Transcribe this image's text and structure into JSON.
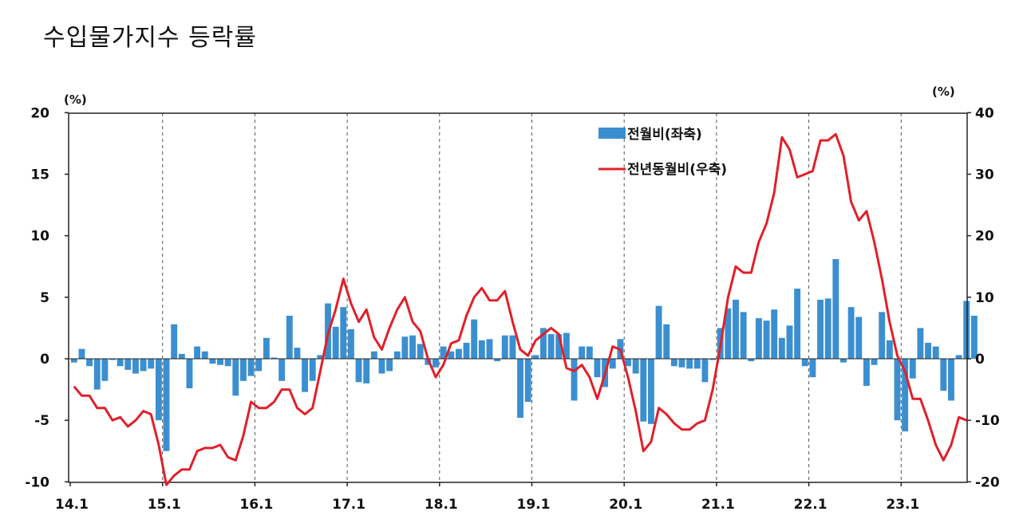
{
  "title": "수입물가지수 등락률",
  "chart_data": {
    "type": "bar+line",
    "title": "수입물가지수 등락률",
    "x_tick_labels": [
      "14.1",
      "15.1",
      "16.1",
      "17.1",
      "18.1",
      "19.1",
      "20.1",
      "21.1",
      "22.1",
      "23.1"
    ],
    "left_axis": {
      "unit": "(%)",
      "ylim": [
        -10,
        20
      ],
      "ticks": [
        "20",
        "15",
        "10",
        "5",
        "0",
        "-5",
        "-10"
      ]
    },
    "right_axis": {
      "unit": "(%)",
      "ylim": [
        -20,
        40
      ],
      "ticks": [
        "40",
        "30",
        "20",
        "10",
        "0",
        "-10",
        "-20"
      ]
    },
    "grid": "vertical dashed lines at year starts",
    "legend_position": "top-center",
    "series": [
      {
        "name": "전월비(좌축)",
        "type": "bar",
        "axis": "left",
        "color": "#3b8fd0",
        "start": "2014.01",
        "values": [
          -0.3,
          0.8,
          -0.6,
          -2.5,
          -1.8,
          -0.1,
          -0.6,
          -0.9,
          -1.2,
          -1.0,
          -0.8,
          -5.0,
          -7.5,
          2.8,
          0.4,
          -2.4,
          1.0,
          0.6,
          -0.4,
          -0.5,
          -0.6,
          -3.0,
          -1.8,
          -1.4,
          -1.0,
          1.7,
          0.1,
          -1.8,
          3.5,
          0.9,
          -2.7,
          -1.8,
          0.3,
          4.5,
          2.6,
          4.2,
          2.4,
          -1.9,
          -2.0,
          0.6,
          -1.2,
          -1.0,
          0.6,
          1.8,
          1.9,
          1.2,
          -0.5,
          -0.7,
          1.0,
          0.6,
          0.8,
          1.3,
          3.2,
          1.5,
          1.6,
          -0.2,
          1.9,
          1.9,
          -4.8,
          -3.5,
          0.3,
          2.5,
          2.0,
          2.0,
          2.1,
          -3.4,
          1.0,
          1.0,
          -1.5,
          -2.3,
          -0.8,
          1.6,
          -0.6,
          -1.2,
          -5.1,
          -5.3,
          4.3,
          2.8,
          -0.6,
          -0.7,
          -0.8,
          -0.8,
          -1.9,
          -0.1,
          2.5,
          4.1,
          4.8,
          3.8,
          -0.2,
          3.3,
          3.1,
          4.0,
          1.7,
          2.7,
          5.7,
          -0.6,
          -1.5,
          4.8,
          4.9,
          8.1,
          -0.3,
          4.2,
          3.4,
          -2.2,
          -0.5,
          3.8,
          1.5,
          -5.0,
          -5.9,
          -1.6,
          2.5,
          1.3,
          1.0,
          -2.6,
          -3.4,
          0.3,
          4.7,
          3.5
        ]
      },
      {
        "name": "전년동월비(우축)",
        "type": "line",
        "axis": "right",
        "color": "#e0202a",
        "start": "2014.01",
        "values": [
          -4.5,
          -6.0,
          -6.0,
          -8.0,
          -8.0,
          -10.0,
          -9.5,
          -11.0,
          -10.0,
          -8.5,
          -9.0,
          -14.0,
          -20.5,
          -19.0,
          -18.0,
          -18.0,
          -15.0,
          -14.5,
          -14.5,
          -14.0,
          -16.0,
          -16.5,
          -12.5,
          -7.0,
          -8.0,
          -8.0,
          -7.0,
          -5.0,
          -5.0,
          -8.0,
          -9.0,
          -8.0,
          -2.0,
          4.0,
          8.0,
          13.0,
          9.0,
          6.0,
          8.0,
          3.5,
          1.5,
          5.0,
          8.0,
          10.0,
          6.0,
          4.5,
          0.0,
          -3.0,
          -1.0,
          2.5,
          3.0,
          7.0,
          10.0,
          11.5,
          9.5,
          9.5,
          11.0,
          6.0,
          1.5,
          0.5,
          3.0,
          4.0,
          5.0,
          4.0,
          -1.5,
          -2.0,
          -1.0,
          -3.0,
          -6.5,
          -2.5,
          2.0,
          1.5,
          -3.0,
          -8.5,
          -15.0,
          -13.5,
          -8.0,
          -9.0,
          -10.5,
          -11.5,
          -11.5,
          -10.5,
          -10.0,
          -5.0,
          2.0,
          10.0,
          15.0,
          14.0,
          14.0,
          19.0,
          22.0,
          27.0,
          36.0,
          34.0,
          29.5,
          30.0,
          30.5,
          35.5,
          35.5,
          36.5,
          33.0,
          25.5,
          22.5,
          24.0,
          19.0,
          13.0,
          6.0,
          0.5,
          -2.0,
          -6.5,
          -6.5,
          -10.0,
          -14.0,
          -16.5,
          -14.0,
          -9.5,
          -10.0
        ]
      }
    ]
  }
}
